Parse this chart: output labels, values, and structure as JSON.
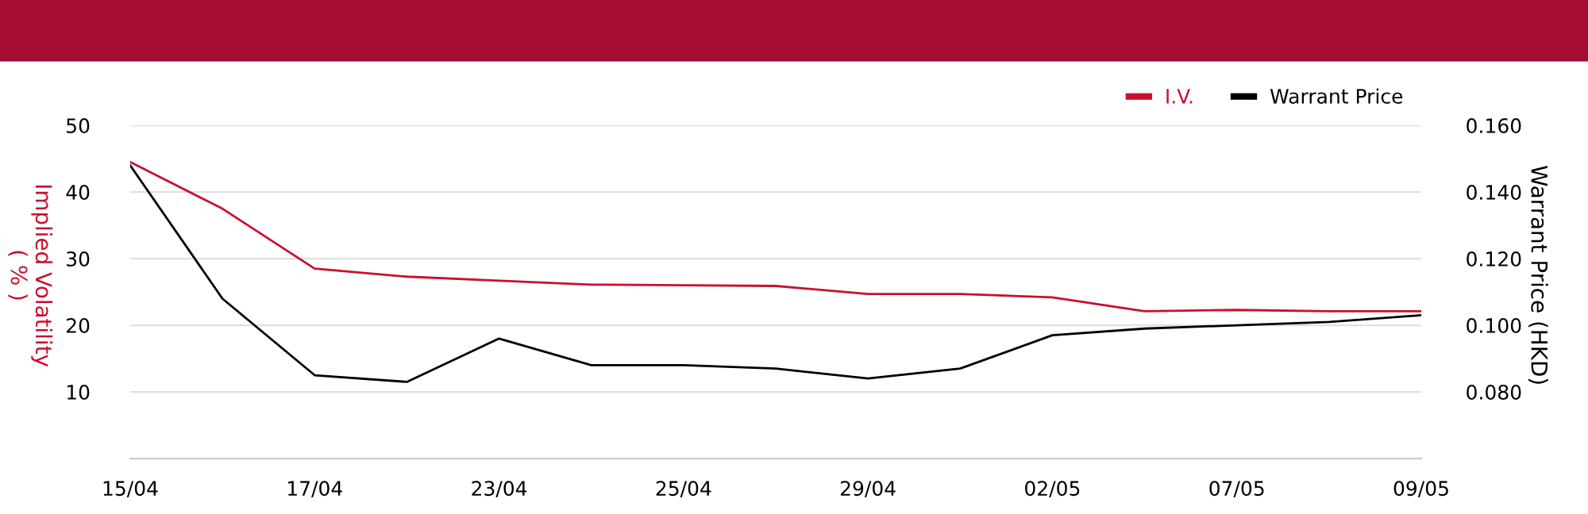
{
  "chart_data": {
    "type": "line",
    "categories": [
      "15/04",
      null,
      "17/04",
      null,
      "23/04",
      null,
      "25/04",
      null,
      "29/04",
      null,
      "02/05",
      null,
      "07/05",
      null,
      "09/05"
    ],
    "series": [
      {
        "name": "I.V.",
        "color": "#c8102e",
        "values": [
          44.5,
          37.5,
          28.5,
          27.3,
          26.7,
          26.1,
          26.0,
          25.9,
          24.7,
          24.7,
          24.2,
          22.1,
          22.3,
          22.1,
          22.1
        ]
      },
      {
        "name": "Warrant Price",
        "color": "#000000",
        "axis": "y2",
        "values": [
          0.148,
          0.108,
          0.085,
          0.083,
          0.096,
          0.088,
          0.088,
          0.087,
          0.084,
          0.087,
          0.097,
          0.099,
          0.1,
          0.101,
          0.103
        ]
      }
    ],
    "ylabel": "Implied Volatility\n( % )",
    "y2label": "Warrant Price (HKD)",
    "ylim": [
      0,
      50
    ],
    "yticks": [
      10,
      20,
      30,
      40,
      50
    ],
    "y2lim": [
      0.06,
      0.16
    ],
    "y2ticks": [
      {
        "value": 0.08,
        "label": "0.080"
      },
      {
        "value": 0.1,
        "label": "0.100"
      },
      {
        "value": 0.12,
        "label": "0.120"
      },
      {
        "value": 0.14,
        "label": "0.140"
      },
      {
        "value": 0.16,
        "label": "0.160"
      }
    ],
    "grid": "y",
    "legend": "top right",
    "marker": "none",
    "line_style": "solid"
  }
}
